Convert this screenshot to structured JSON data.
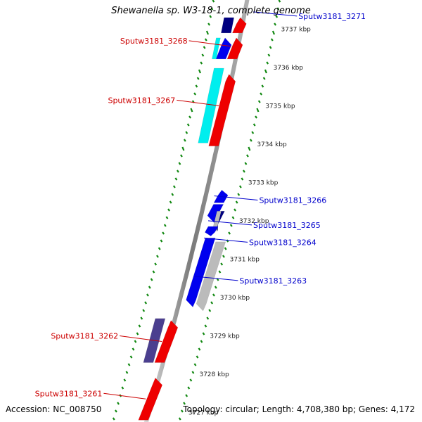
{
  "title": "Shewanella sp. W3-18-1, complete genome",
  "accession": "Accession: NC_008750",
  "summary": "Topology: circular; Length: 4,708,380 bp; Genes: 4,172",
  "colors": {
    "backbone": "#8c8c8c",
    "tick": "#118811",
    "gene_red": "#ee0000",
    "gene_blue": "#0000ee",
    "gene_navy": "#000080",
    "gene_cyan": "#00eeee",
    "gene_purple": "#4b3f8f",
    "gene_gray": "#bbbbbb",
    "label_forward": "#cc0000",
    "label_reverse": "#0000cc"
  },
  "scale": {
    "tick_labels": [
      "3737 kbp",
      "3736 kbp",
      "3735 kbp",
      "3734 kbp",
      "3733 kbp",
      "3732 kbp",
      "3731 kbp",
      "3730 kbp",
      "3729 kbp",
      "3728 kbp",
      "3727 kbp"
    ]
  },
  "genes": [
    {
      "label": "",
      "strand": "forward",
      "start_kbp": 3737.3,
      "end_kbp": 3736.9,
      "lane": 1,
      "color": "gene_red",
      "direction": "up"
    },
    {
      "label": "",
      "strand": "forward",
      "start_kbp": 3737.3,
      "end_kbp": 3736.9,
      "lane": 2,
      "color": "gene_navy",
      "direction": "none"
    },
    {
      "label": "Sputw3181_3268",
      "strand": "forward",
      "start_kbp": 3736.77,
      "end_kbp": 3736.22,
      "lane": 1,
      "color": "gene_red",
      "direction": "up"
    },
    {
      "label": "",
      "strand": "forward",
      "start_kbp": 3736.77,
      "end_kbp": 3736.22,
      "lane": 2,
      "color": "gene_blue",
      "direction": "up"
    },
    {
      "label": "",
      "strand": "forward",
      "start_kbp": 3736.77,
      "end_kbp": 3736.22,
      "lane": 2.35,
      "color": "gene_cyan",
      "direction": "none"
    },
    {
      "label": "Sputw3181_3267",
      "strand": "forward",
      "start_kbp": 3735.82,
      "end_kbp": 3733.95,
      "lane": 1,
      "color": "gene_red",
      "direction": "up"
    },
    {
      "label": "",
      "strand": "forward",
      "start_kbp": 3735.98,
      "end_kbp": 3734.03,
      "lane": 2,
      "color": "gene_cyan",
      "direction": "none"
    },
    {
      "label": "Sputw3181_3266",
      "strand": "reverse",
      "start_kbp": 3732.8,
      "end_kbp": 3732.47,
      "lane": -1,
      "color": "gene_blue",
      "direction": "up"
    },
    {
      "label": "",
      "strand": "reverse",
      "start_kbp": 3732.43,
      "end_kbp": 3731.95,
      "lane": -1,
      "color": "gene_blue",
      "direction": "down"
    },
    {
      "label": "Sputw3181_3265",
      "strand": "reverse",
      "start_kbp": 3732.25,
      "end_kbp": 3731.73,
      "lane": -1.75,
      "color": "gene_navy",
      "direction": "down"
    },
    {
      "label": "",
      "strand": "reverse",
      "start_kbp": 3732.25,
      "end_kbp": 3731.73,
      "lane": -1.45,
      "color": "gene_gray",
      "direction": "none"
    },
    {
      "label": "",
      "strand": "reverse",
      "start_kbp": 3731.85,
      "end_kbp": 3731.6,
      "lane": -1,
      "color": "gene_blue",
      "direction": "down"
    },
    {
      "label": "Sputw3181_3264",
      "strand": "reverse",
      "start_kbp": 3731.55,
      "end_kbp": 3729.75,
      "lane": -1,
      "color": "gene_blue",
      "direction": "down"
    },
    {
      "label": "Sputw3181_3263",
      "strand": "reverse",
      "start_kbp": 3731.45,
      "end_kbp": 3729.65,
      "lane": -2,
      "color": "gene_gray",
      "direction": "down"
    },
    {
      "label": "Sputw3181_3262",
      "strand": "forward",
      "start_kbp": 3729.4,
      "end_kbp": 3728.3,
      "lane": 1,
      "color": "gene_red",
      "direction": "up"
    },
    {
      "label": "",
      "strand": "forward",
      "start_kbp": 3729.45,
      "end_kbp": 3728.3,
      "lane": 2,
      "color": "gene_purple",
      "direction": "none"
    },
    {
      "label": "Sputw3181_3261",
      "strand": "forward",
      "start_kbp": 3727.9,
      "end_kbp": 3726.8,
      "lane": 1,
      "color": "gene_red",
      "direction": "up"
    }
  ],
  "labels": [
    {
      "text": "Sputw3181_3271",
      "strand": "reverse",
      "target_kbp": 3737.45
    },
    {
      "text": "Sputw3181_3268",
      "strand": "forward",
      "target_kbp": 3736.55
    },
    {
      "text": "Sputw3181_3267",
      "strand": "forward",
      "target_kbp": 3735.0
    },
    {
      "text": "Sputw3181_3266",
      "strand": "reverse",
      "target_kbp": 3732.65
    },
    {
      "text": "Sputw3181_3265",
      "strand": "reverse",
      "target_kbp": 3732.0
    },
    {
      "text": "Sputw3181_3264",
      "strand": "reverse",
      "target_kbp": 3731.55
    },
    {
      "text": "Sputw3181_3263",
      "strand": "reverse",
      "target_kbp": 3730.55
    },
    {
      "text": "Sputw3181_3262",
      "strand": "forward",
      "target_kbp": 3728.85
    },
    {
      "text": "Sputw3181_3261",
      "strand": "forward",
      "target_kbp": 3727.35
    }
  ]
}
